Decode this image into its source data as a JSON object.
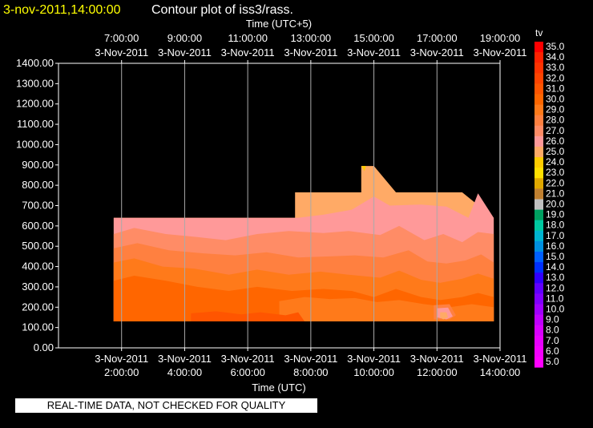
{
  "header": {
    "date_text": "3-nov-2011,14:00:00",
    "title_text": "Contour plot of iss3/rass."
  },
  "footer": {
    "quality_note": "REAL-TIME DATA, NOT CHECKED FOR QUALITY"
  },
  "chart_data": {
    "type": "heatmap",
    "variable_label": "tv",
    "xlabel": "Time (UTC)",
    "x2label": "Time (UTC+5)",
    "ylim": [
      0,
      1400
    ],
    "xlim_hours_utc": [
      0,
      14
    ],
    "y_ticks": [
      "0.00",
      "100.00",
      "200.00",
      "300.00",
      "400.00",
      "500.00",
      "600.00",
      "700.00",
      "800.00",
      "900.00",
      "1000.00",
      "1100.00",
      "1200.00",
      "1300.00",
      "1400.00"
    ],
    "x_ticks_utc": [
      {
        "date": "3-Nov-2011",
        "time": "2:00:00"
      },
      {
        "date": "3-Nov-2011",
        "time": "4:00:00"
      },
      {
        "date": "3-Nov-2011",
        "time": "6:00:00"
      },
      {
        "date": "3-Nov-2011",
        "time": "8:00:00"
      },
      {
        "date": "3-Nov-2011",
        "time": "10:00:00"
      },
      {
        "date": "3-Nov-2011",
        "time": "12:00:00"
      },
      {
        "date": "3-Nov-2011",
        "time": "14:00:00"
      }
    ],
    "x_ticks_local": [
      {
        "time": "7:00:00",
        "date": "3-Nov-2011"
      },
      {
        "time": "9:00:00",
        "date": "3-Nov-2011"
      },
      {
        "time": "11:00:00",
        "date": "3-Nov-2011"
      },
      {
        "time": "13:00:00",
        "date": "3-Nov-2011"
      },
      {
        "time": "15:00:00",
        "date": "3-Nov-2011"
      },
      {
        "time": "17:00:00",
        "date": "3-Nov-2011"
      },
      {
        "time": "19:00:00",
        "date": "3-Nov-2011"
      }
    ],
    "grid": true,
    "colorbar": {
      "placement": "right",
      "labels": [
        "35.0",
        "34.0",
        "33.0",
        "32.0",
        "31.0",
        "30.0",
        "29.0",
        "28.0",
        "27.0",
        "26.0",
        "25.0",
        "24.0",
        "23.0",
        "22.0",
        "21.0",
        "20.0",
        "19.0",
        "18.0",
        "17.0",
        "16.0",
        "15.0",
        "14.0",
        "13.0",
        "12.0",
        "11.0",
        "10.0",
        "9.0",
        "8.0",
        "7.0",
        "6.0",
        "5.0"
      ],
      "colors": [
        "#ff0000",
        "#ff2200",
        "#ff3300",
        "#ff4400",
        "#ff5500",
        "#ff6600",
        "#ff7a1a",
        "#ff8040",
        "#ff8c66",
        "#ff9999",
        "#ffaa66",
        "#ffcc00",
        "#ffe000",
        "#e0a800",
        "#c08030",
        "#c0c0c0",
        "#00a060",
        "#00c8a0",
        "#00b4d0",
        "#0090e0",
        "#0060ff",
        "#0030ff",
        "#3000ff",
        "#6000ff",
        "#8000ff",
        "#a000ff",
        "#c000ff",
        "#d800ff",
        "#e800ff",
        "#f400ff",
        "#ff00ff"
      ]
    },
    "regions": [
      {
        "band": "25.0",
        "color": "#ffaa66",
        "points": [
          [
            1.75,
            640
          ],
          [
            7.5,
            640
          ],
          [
            7.5,
            765
          ],
          [
            9.6,
            765
          ],
          [
            9.6,
            895
          ],
          [
            10.0,
            895
          ],
          [
            10.7,
            765
          ],
          [
            12.8,
            765
          ],
          [
            13.8,
            640
          ],
          [
            13.8,
            130
          ],
          [
            1.75,
            130
          ]
        ]
      },
      {
        "band": "26.0",
        "color": "#ff9999",
        "points": [
          [
            1.75,
            640
          ],
          [
            7.6,
            640
          ],
          [
            8.4,
            655
          ],
          [
            9.3,
            680
          ],
          [
            10.0,
            745
          ],
          [
            10.5,
            700
          ],
          [
            11.5,
            705
          ],
          [
            12.3,
            695
          ],
          [
            13.0,
            640
          ],
          [
            13.3,
            760
          ],
          [
            13.8,
            640
          ],
          [
            13.8,
            130
          ],
          [
            1.75,
            130
          ]
        ]
      },
      {
        "band": "27.0",
        "color": "#ff8c66",
        "points": [
          [
            1.75,
            560
          ],
          [
            2.4,
            590
          ],
          [
            3.4,
            560
          ],
          [
            4.4,
            545
          ],
          [
            5.3,
            530
          ],
          [
            6.3,
            560
          ],
          [
            7.3,
            575
          ],
          [
            8.4,
            565
          ],
          [
            9.2,
            575
          ],
          [
            10.2,
            555
          ],
          [
            10.8,
            600
          ],
          [
            11.6,
            530
          ],
          [
            12.2,
            560
          ],
          [
            12.8,
            520
          ],
          [
            13.3,
            570
          ],
          [
            13.8,
            560
          ],
          [
            13.8,
            130
          ],
          [
            1.75,
            130
          ]
        ]
      },
      {
        "band": "28.0",
        "color": "#ff8040",
        "points": [
          [
            1.75,
            490
          ],
          [
            2.5,
            515
          ],
          [
            3.5,
            480
          ],
          [
            4.6,
            465
          ],
          [
            5.6,
            455
          ],
          [
            6.6,
            470
          ],
          [
            7.6,
            445
          ],
          [
            8.6,
            450
          ],
          [
            9.4,
            455
          ],
          [
            10.3,
            445
          ],
          [
            11.1,
            480
          ],
          [
            11.7,
            425
          ],
          [
            12.3,
            415
          ],
          [
            12.9,
            430
          ],
          [
            13.4,
            460
          ],
          [
            13.8,
            420
          ],
          [
            13.8,
            130
          ],
          [
            1.75,
            130
          ]
        ]
      },
      {
        "band": "29.0",
        "color": "#ff7a1a",
        "points": [
          [
            1.75,
            420
          ],
          [
            2.4,
            440
          ],
          [
            3.3,
            400
          ],
          [
            4.3,
            390
          ],
          [
            5.4,
            360
          ],
          [
            6.3,
            385
          ],
          [
            7.3,
            360
          ],
          [
            8.3,
            375
          ],
          [
            9.2,
            360
          ],
          [
            10.2,
            345
          ],
          [
            10.8,
            380
          ],
          [
            11.5,
            335
          ],
          [
            12.1,
            320
          ],
          [
            12.8,
            340
          ],
          [
            13.3,
            365
          ],
          [
            13.8,
            340
          ],
          [
            13.8,
            130
          ],
          [
            1.75,
            130
          ]
        ]
      },
      {
        "band": "30.0",
        "color": "#ff6600",
        "points": [
          [
            1.75,
            330
          ],
          [
            2.4,
            355
          ],
          [
            3.4,
            330
          ],
          [
            4.4,
            300
          ],
          [
            5.4,
            280
          ],
          [
            6.3,
            300
          ],
          [
            7.4,
            280
          ],
          [
            8.4,
            290
          ],
          [
            9.3,
            280
          ],
          [
            10.0,
            250
          ],
          [
            10.7,
            290
          ],
          [
            11.5,
            250
          ],
          [
            12.1,
            235
          ],
          [
            12.8,
            250
          ],
          [
            13.3,
            270
          ],
          [
            13.8,
            250
          ],
          [
            13.8,
            130
          ],
          [
            1.75,
            130
          ]
        ]
      },
      {
        "band": "29.0",
        "color": "#ff7a1a",
        "points": [
          [
            7.0,
            230
          ],
          [
            7.8,
            250
          ],
          [
            8.6,
            240
          ],
          [
            9.4,
            245
          ],
          [
            10.1,
            225
          ],
          [
            10.8,
            235
          ],
          [
            11.6,
            215
          ],
          [
            12.4,
            200
          ],
          [
            13.1,
            215
          ],
          [
            13.8,
            200
          ],
          [
            13.8,
            130
          ],
          [
            7.0,
            130
          ]
        ]
      },
      {
        "band": "28.0",
        "color": "#ff8040",
        "points": [
          [
            11.9,
            210
          ],
          [
            12.4,
            215
          ],
          [
            12.6,
            160
          ],
          [
            12.4,
            140
          ],
          [
            11.9,
            140
          ]
        ]
      },
      {
        "band": "26.0",
        "color": "#ff9999",
        "points": [
          [
            12.0,
            195
          ],
          [
            12.35,
            198
          ],
          [
            12.5,
            155
          ],
          [
            12.3,
            140
          ],
          [
            12.0,
            150
          ]
        ]
      },
      {
        "band": "25.0",
        "color": "#ffaa66",
        "points": [
          [
            12.1,
            175
          ],
          [
            12.3,
            175
          ],
          [
            12.35,
            150
          ],
          [
            12.2,
            140
          ],
          [
            12.1,
            150
          ]
        ]
      },
      {
        "band": "31.0",
        "color": "#ff5500",
        "points": [
          [
            4.2,
            170
          ],
          [
            5.0,
            180
          ],
          [
            5.8,
            165
          ],
          [
            6.4,
            175
          ],
          [
            7.2,
            160
          ],
          [
            7.6,
            175
          ],
          [
            7.8,
            130
          ],
          [
            4.2,
            130
          ]
        ]
      },
      {
        "band": "24.0",
        "color": "#ffcc00",
        "points": [
          [
            9.6,
            895
          ],
          [
            9.75,
            895
          ],
          [
            9.7,
            870
          ]
        ]
      }
    ]
  }
}
